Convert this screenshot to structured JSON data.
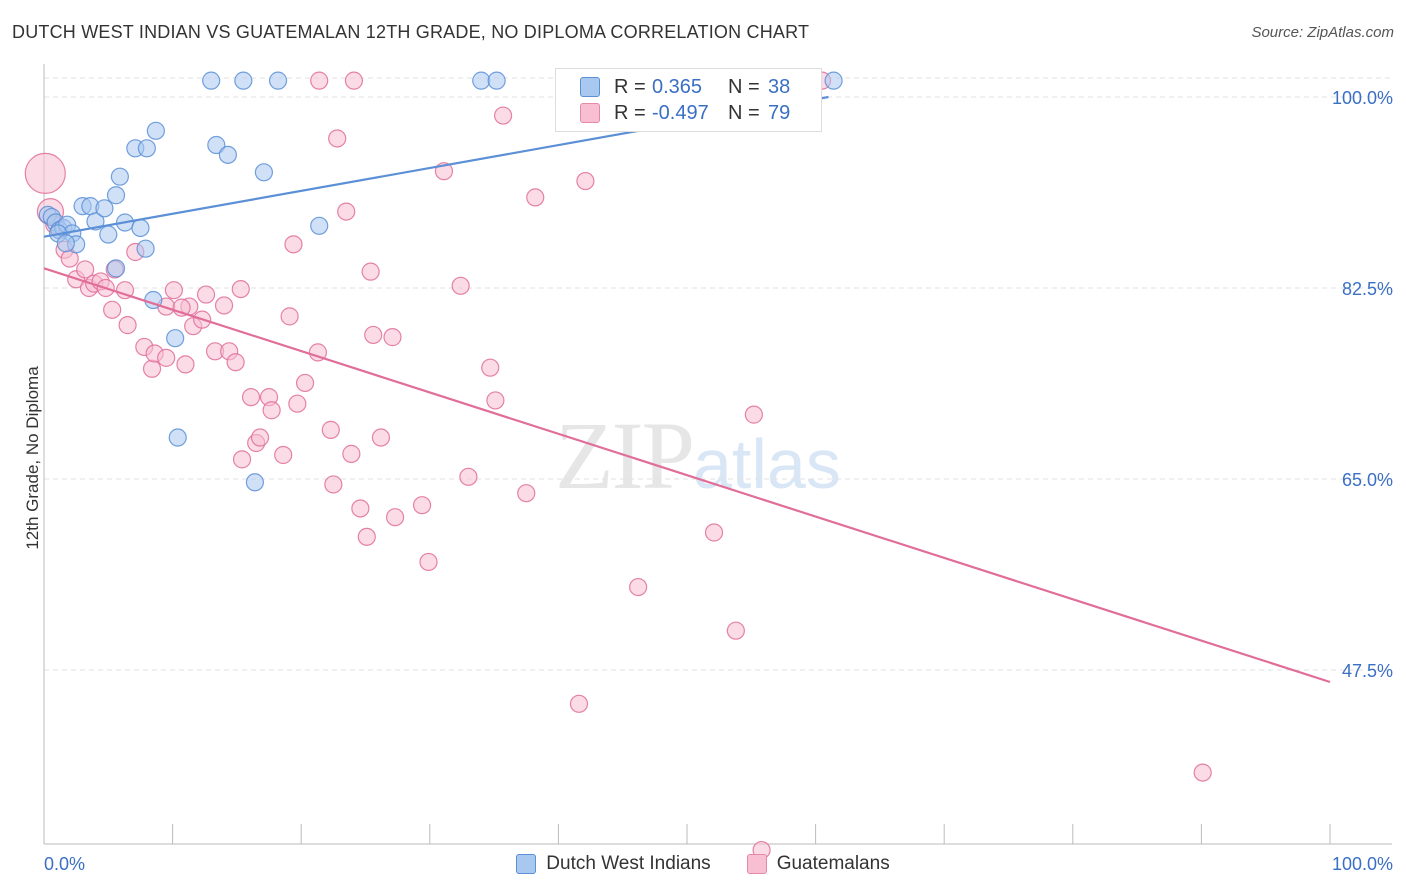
{
  "title": "DUTCH WEST INDIAN VS GUATEMALAN 12TH GRADE, NO DIPLOMA CORRELATION CHART",
  "source": "Source: ZipAtlas.com",
  "watermark": {
    "part1": "ZIP",
    "part2": "atlas"
  },
  "legend": {
    "rows": [
      {
        "r_label": "R =",
        "r_value": "0.365",
        "n_label": "N =",
        "n_value": "38",
        "fill": "#a9c8f0",
        "stroke": "#5b8fd6"
      },
      {
        "r_label": "R =",
        "r_value": "-0.497",
        "n_label": "N =",
        "n_value": "79",
        "fill": "#f7bfd1",
        "stroke": "#e589a7"
      }
    ]
  },
  "chart_data": {
    "type": "scatter",
    "title": "DUTCH WEST INDIAN VS GUATEMALAN 12TH GRADE, NO DIPLOMA CORRELATION CHART",
    "xlabel": "",
    "ylabel": "12th Grade, No Diploma",
    "xlim": [
      0,
      100
    ],
    "ylim": [
      29.3,
      102
    ],
    "x_tick_labels": [
      "0.0%",
      "100.0%"
    ],
    "y_ticks": [
      100,
      82.5,
      65,
      47.5
    ],
    "y_tick_labels": [
      "100.0%",
      "82.5%",
      "65.0%",
      "47.5%"
    ],
    "grid": "horizontal dashed",
    "legend_position": "bottom-center",
    "series": [
      {
        "name": "Dutch West Indians",
        "color": "#5b8fd6",
        "fill": "#a9c8f0",
        "trend": {
          "x0": 0,
          "y0": 87.2,
          "x1": 61,
          "y1": 100
        },
        "points": [
          [
            0.3,
            89.2
          ],
          [
            0.6,
            89
          ],
          [
            0.9,
            88.5
          ],
          [
            1.2,
            87.8
          ],
          [
            1.5,
            88
          ],
          [
            1.8,
            88.3
          ],
          [
            2.2,
            87.5
          ],
          [
            2.5,
            86.5
          ],
          [
            3,
            90
          ],
          [
            3.6,
            90
          ],
          [
            4,
            88.6
          ],
          [
            4.7,
            89.8
          ],
          [
            5,
            87.4
          ],
          [
            5.6,
            84.3
          ],
          [
            5.6,
            91
          ],
          [
            5.9,
            92.7
          ],
          [
            6.3,
            88.5
          ],
          [
            7.1,
            95.3
          ],
          [
            8,
            95.3
          ],
          [
            7.5,
            88
          ],
          [
            7.9,
            86.1
          ],
          [
            8.7,
            96.9
          ],
          [
            8.5,
            81.4
          ],
          [
            10.4,
            68.8
          ],
          [
            10.2,
            77.9
          ],
          [
            13,
            101.5
          ],
          [
            15.5,
            101.5
          ],
          [
            18.2,
            101.5
          ],
          [
            13.4,
            95.6
          ],
          [
            14.3,
            94.7
          ],
          [
            17.1,
            93.1
          ],
          [
            16.4,
            64.7
          ],
          [
            21.4,
            88.2
          ],
          [
            34,
            101.5
          ],
          [
            35.2,
            101.5
          ],
          [
            61.4,
            101.5
          ],
          [
            1.1,
            87.5
          ],
          [
            1.7,
            86.6
          ]
        ]
      },
      {
        "name": "Guatemalans",
        "color": "#e16d99",
        "fill": "#f7bfd1",
        "trend": {
          "x0": 0,
          "y0": 84.3,
          "x1": 100,
          "y1": 46.4
        },
        "points": [
          [
            0.5,
            89.5
          ],
          [
            0.8,
            88.3
          ],
          [
            1.2,
            87.8
          ],
          [
            1.6,
            86
          ],
          [
            2,
            85.2
          ],
          [
            2.5,
            83.3
          ],
          [
            3.2,
            84.2
          ],
          [
            3.5,
            82.5
          ],
          [
            3.9,
            82.9
          ],
          [
            4.4,
            83.1
          ],
          [
            4.8,
            82.5
          ],
          [
            5.3,
            80.5
          ],
          [
            5.5,
            84.2
          ],
          [
            6.3,
            82.3
          ],
          [
            6.5,
            79.1
          ],
          [
            7.1,
            85.8
          ],
          [
            7.8,
            77.1
          ],
          [
            8.4,
            75.1
          ],
          [
            8.6,
            76.5
          ],
          [
            9.5,
            76.1
          ],
          [
            9.5,
            80.8
          ],
          [
            10.1,
            82.3
          ],
          [
            11,
            75.5
          ],
          [
            11.3,
            80.8
          ],
          [
            11.6,
            79
          ],
          [
            12.3,
            79.6
          ],
          [
            12.6,
            81.9
          ],
          [
            13.3,
            76.7
          ],
          [
            14,
            80.9
          ],
          [
            14.4,
            76.7
          ],
          [
            14.9,
            75.7
          ],
          [
            15.3,
            82.4
          ],
          [
            16.1,
            72.5
          ],
          [
            16.5,
            68.3
          ],
          [
            16.8,
            68.8
          ],
          [
            15.4,
            66.8
          ],
          [
            17.5,
            72.5
          ],
          [
            17.7,
            71.3
          ],
          [
            18.6,
            67.2
          ],
          [
            19.1,
            79.9
          ],
          [
            19.4,
            86.5
          ],
          [
            19.7,
            71.9
          ],
          [
            20.3,
            73.8
          ],
          [
            21.3,
            76.6
          ],
          [
            22.3,
            69.5
          ],
          [
            22.5,
            64.5
          ],
          [
            23.5,
            89.5
          ],
          [
            22.8,
            96.2
          ],
          [
            23.9,
            67.3
          ],
          [
            24.6,
            62.3
          ],
          [
            25.1,
            59.7
          ],
          [
            25.4,
            84
          ],
          [
            25.6,
            78.2
          ],
          [
            27.1,
            78
          ],
          [
            26.2,
            68.8
          ],
          [
            27.3,
            61.5
          ],
          [
            29.4,
            62.6
          ],
          [
            29.9,
            57.4
          ],
          [
            31.1,
            93.2
          ],
          [
            32.4,
            82.7
          ],
          [
            33,
            65.2
          ],
          [
            34.7,
            75.2
          ],
          [
            35.1,
            72.2
          ],
          [
            35.7,
            98.3
          ],
          [
            37.5,
            63.7
          ],
          [
            38.2,
            90.8
          ],
          [
            42.1,
            92.3
          ],
          [
            41.6,
            44.4
          ],
          [
            46.2,
            55.1
          ],
          [
            52.1,
            60.1
          ],
          [
            55.2,
            70.9
          ],
          [
            53.8,
            51.1
          ],
          [
            90.1,
            38.1
          ],
          [
            55.8,
            31
          ],
          [
            0.1,
            93
          ],
          [
            21.4,
            101.5
          ],
          [
            24.1,
            101.5
          ],
          [
            60.5,
            101.5
          ],
          [
            10.7,
            80.7
          ]
        ]
      }
    ]
  }
}
